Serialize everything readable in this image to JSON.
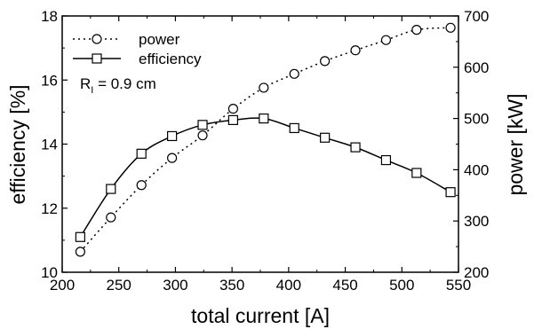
{
  "chart_data": {
    "type": "line",
    "xlabel": "total current [A]",
    "ylabel_left": "efficiency [%]",
    "ylabel_right": "power [kW]",
    "xlim": [
      200,
      550
    ],
    "xticks": [
      200,
      250,
      300,
      350,
      400,
      450,
      500,
      550
    ],
    "ylim_left": [
      10,
      18
    ],
    "yticks_left": [
      10,
      12,
      14,
      16,
      18
    ],
    "ylim_right": [
      200,
      700
    ],
    "yticks_right": [
      200,
      300,
      400,
      500,
      600,
      700
    ],
    "grid": false,
    "legend_position": "top-left",
    "series": [
      {
        "name": "power",
        "axis": "right",
        "style": "dotted",
        "marker": "circle",
        "x": [
          216,
          243,
          270,
          297,
          324,
          351,
          378,
          405,
          432,
          459,
          486,
          513,
          543
        ],
        "y": [
          240,
          307,
          370,
          423,
          467,
          519,
          560,
          587,
          612,
          633,
          653,
          673,
          677
        ]
      },
      {
        "name": "efficiency",
        "axis": "left",
        "style": "solid",
        "marker": "square",
        "x": [
          216,
          243,
          270,
          297,
          324,
          351,
          378,
          405,
          432,
          459,
          486,
          513,
          543
        ],
        "y": [
          11.1,
          12.6,
          13.7,
          14.25,
          14.6,
          14.75,
          14.8,
          14.5,
          14.2,
          13.9,
          13.5,
          13.1,
          12.5
        ]
      }
    ],
    "annotation": {
      "base": "R",
      "subscript": "I",
      "rest": " = 0.9 cm"
    }
  }
}
